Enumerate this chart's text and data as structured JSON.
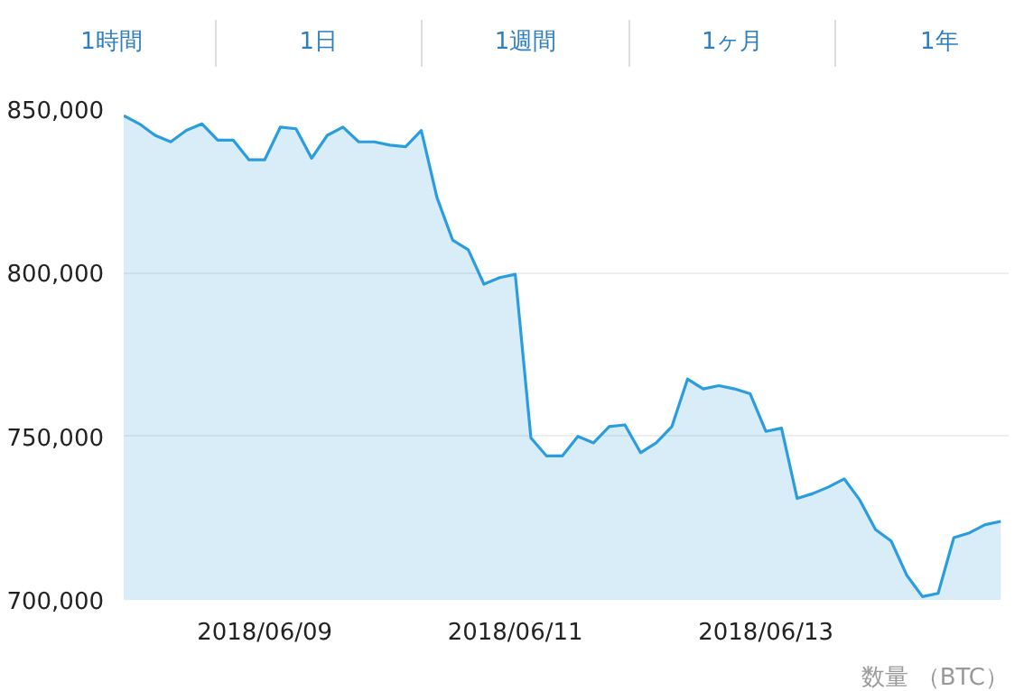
{
  "chart_data": {
    "type": "area",
    "annotations": [
      "1時間",
      "1日",
      "1週間",
      "1ヶ月",
      "1年",
      "数量 （BTC）"
    ],
    "x": [
      "2018-06-07T21:00",
      "2018-06-08T00:00",
      "2018-06-08T03:00",
      "2018-06-08T06:00",
      "2018-06-08T09:00",
      "2018-06-08T12:00",
      "2018-06-08T15:00",
      "2018-06-08T18:00",
      "2018-06-08T21:00",
      "2018-06-09T00:00",
      "2018-06-09T03:00",
      "2018-06-09T06:00",
      "2018-06-09T09:00",
      "2018-06-09T12:00",
      "2018-06-09T15:00",
      "2018-06-09T18:00",
      "2018-06-09T21:00",
      "2018-06-10T00:00",
      "2018-06-10T03:00",
      "2018-06-10T06:00",
      "2018-06-10T09:00",
      "2018-06-10T12:00",
      "2018-06-10T15:00",
      "2018-06-10T18:00",
      "2018-06-10T21:00",
      "2018-06-11T00:00",
      "2018-06-11T03:00",
      "2018-06-11T06:00",
      "2018-06-11T09:00",
      "2018-06-11T12:00",
      "2018-06-11T15:00",
      "2018-06-11T18:00",
      "2018-06-11T21:00",
      "2018-06-12T00:00",
      "2018-06-12T03:00",
      "2018-06-12T06:00",
      "2018-06-12T09:00",
      "2018-06-12T12:00",
      "2018-06-12T15:00",
      "2018-06-12T18:00",
      "2018-06-12T21:00",
      "2018-06-13T00:00",
      "2018-06-13T03:00",
      "2018-06-13T06:00",
      "2018-06-13T09:00",
      "2018-06-13T12:00",
      "2018-06-13T15:00",
      "2018-06-13T18:00",
      "2018-06-13T21:00",
      "2018-06-14T00:00",
      "2018-06-14T03:00",
      "2018-06-14T06:00",
      "2018-06-14T09:00",
      "2018-06-14T12:00",
      "2018-06-14T15:00",
      "2018-06-14T18:00",
      "2018-06-14T21:00"
    ],
    "series": [
      {
        "color": "#2a9de0",
        "values": [
          848000,
          845500,
          842000,
          840000,
          843500,
          845500,
          840500,
          840500,
          834500,
          834500,
          844500,
          844000,
          835000,
          842000,
          844500,
          840000,
          840000,
          839000,
          838500,
          843500,
          823000,
          810000,
          807000,
          796500,
          798500,
          799500,
          749500,
          744000,
          744000,
          750000,
          748000,
          753000,
          753500,
          745000,
          748000,
          753000,
          767500,
          764500,
          765500,
          764500,
          763000,
          751500,
          752500,
          731000,
          732500,
          734500,
          737000,
          730500,
          721500,
          718000,
          707500,
          701000,
          702000,
          719000,
          720500,
          723000,
          724000
        ]
      }
    ],
    "xlim": [
      "2018-06-07T21:00",
      "2018-06-14T22:30"
    ],
    "xticks": [
      {
        "value": "2018-06-09",
        "label": "2018/06/09"
      },
      {
        "value": "2018-06-11",
        "label": "2018/06/11"
      },
      {
        "value": "2018-06-13",
        "label": "2018/06/13"
      }
    ],
    "ylim": [
      700000,
      850000
    ],
    "yticks": [
      {
        "value": 700000,
        "label": "700,000"
      },
      {
        "value": 750000,
        "label": "750,000"
      },
      {
        "value": 800000,
        "label": "800,000"
      },
      {
        "value": 850000,
        "label": "850,000"
      }
    ],
    "grid": "y"
  }
}
